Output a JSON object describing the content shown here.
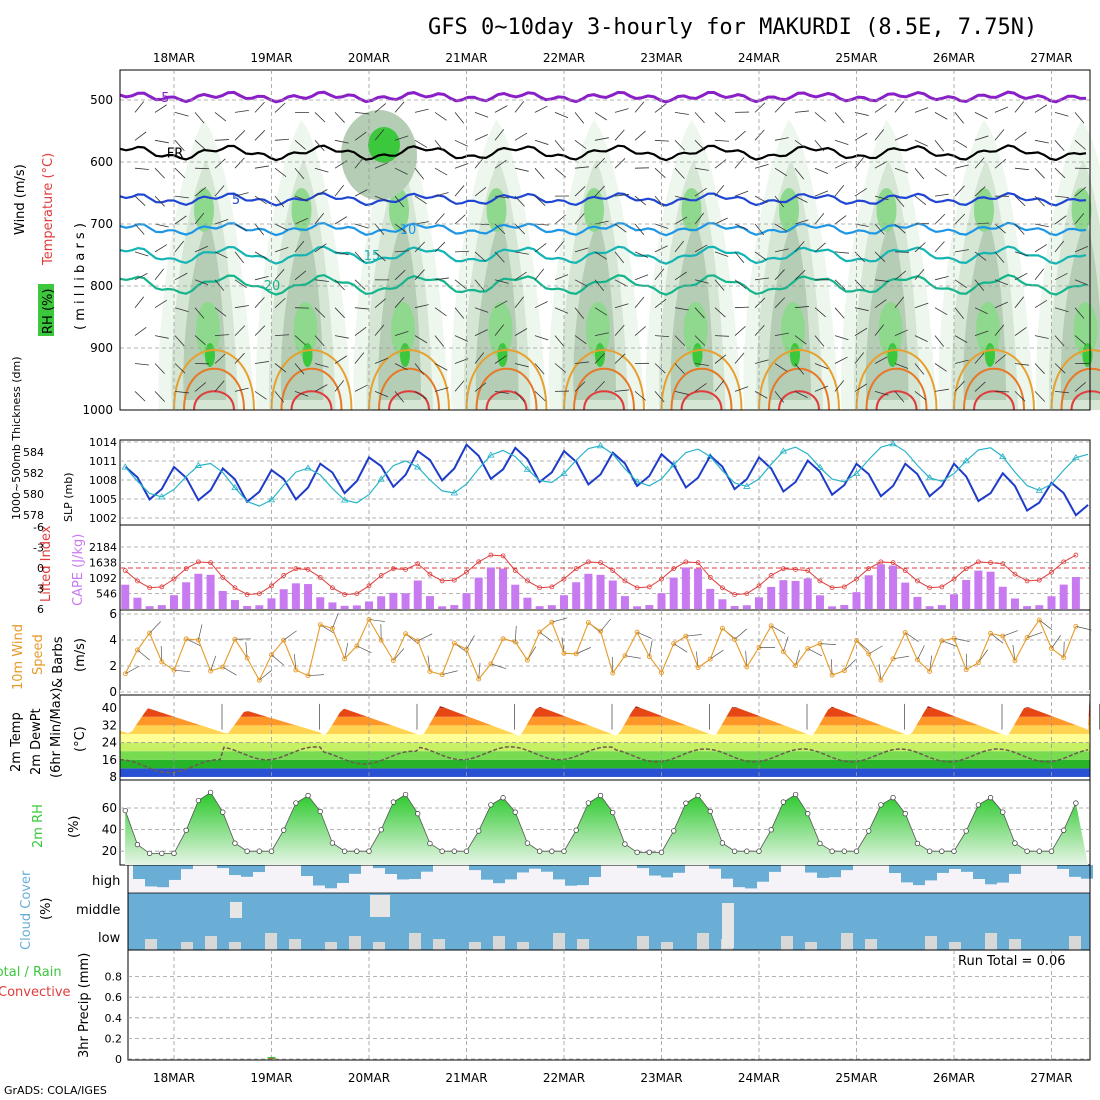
{
  "title": "GFS 0~10day 3-hourly for MAKURDI (8.5E, 7.75N)",
  "credit": "GrADS: COLA/IGES",
  "dates": [
    "18MAR",
    "19MAR",
    "20MAR",
    "21MAR",
    "22MAR",
    "23MAR",
    "24MAR",
    "25MAR",
    "26MAR",
    "27MAR"
  ],
  "colors": {
    "rh": "#3cc83c",
    "temp_minus5": "#8a1fc8",
    "temp_0": "#000000",
    "temp_5": "#1e46d2",
    "temp_10": "#1e96e6",
    "temp_15": "#14b4b4",
    "temp_20": "#14b48c",
    "slp": "#1e3cc8",
    "thickness": "#28b4c8",
    "cape": "#c87af0",
    "lifted_index": "#e03c3c",
    "wind10m": "#e69a28",
    "rh2m": "#3cc83c",
    "cloud": "#6aaed6",
    "precip_total": "#3cc83c",
    "precip_conv": "#e03c3c"
  },
  "panels": {
    "upper": {
      "labels": {
        "rh": "RH (%)",
        "temp": "Temperature (°C)",
        "wind": "Wind (m/s)",
        "axis": "( m i l l i b a r s )"
      },
      "pressure_ticks": [
        "500",
        "600",
        "700",
        "800",
        "900",
        "1000"
      ],
      "isotherm_labels": [
        "-5",
        "FR",
        "5",
        "10",
        "15",
        "20"
      ]
    },
    "slp_thick": {
      "labels": {
        "thick": "1000~500mb Thickness (dm)",
        "slp": "SLP (mb)"
      },
      "thick_ticks": [
        "584",
        "582",
        "580",
        "578"
      ],
      "slp_ticks": [
        "1014",
        "1011",
        "1008",
        "1005",
        "1002"
      ]
    },
    "cape_li": {
      "labels": {
        "li": "Lifted Index",
        "cape": "CAPE (J/kg)"
      },
      "li_ticks": [
        "-6",
        "-3",
        "0",
        "3",
        "6"
      ],
      "cape_ticks": [
        "2184",
        "1638",
        "1092",
        "546"
      ]
    },
    "wind10": {
      "labels": {
        "a": "10m Wind",
        "b": "Speed",
        "c": "& Barbs",
        "unit": "(m/s)"
      },
      "ticks": [
        "6",
        "4",
        "2",
        "0"
      ]
    },
    "temp2m": {
      "labels": {
        "a": "2m Temp",
        "b": "2m DewPt",
        "c": "(6hr Min/Max)",
        "unit": "(°C)"
      },
      "ticks": [
        "40",
        "32",
        "24",
        "16",
        "8"
      ]
    },
    "rh2m": {
      "labels": {
        "a": "2m RH",
        "unit": "(%)"
      },
      "ticks": [
        "60",
        "40",
        "20"
      ]
    },
    "cloud": {
      "labels": {
        "a": "Cloud Cover",
        "unit": "(%)",
        "high": "high",
        "middle": "middle",
        "low": "low"
      }
    },
    "precip": {
      "labels": {
        "total": "Total / Rain",
        "conv": "Convective",
        "axis": "3hr Precip (mm)",
        "run_total": "Run Total = 0.06"
      },
      "ticks": [
        "0.8",
        "0.6",
        "0.4",
        "0.2",
        "0"
      ]
    }
  },
  "chart_data": [
    {
      "type": "line",
      "title": "SLP (mb) and 1000~500mb Thickness (dm)",
      "x": [
        "18MAR",
        "19MAR",
        "20MAR",
        "21MAR",
        "22MAR",
        "23MAR",
        "24MAR",
        "25MAR",
        "26MAR",
        "27MAR"
      ],
      "series": [
        {
          "name": "SLP (mb)",
          "values": [
            1007.5,
            1007.0,
            1009.0,
            1011.0,
            1010.0,
            1009.5,
            1009.0,
            1008.0,
            1008.0,
            1005.0
          ]
        },
        {
          "name": "1000~500mb Thickness (dm)",
          "values": [
            581.5,
            580.5,
            581.0,
            582.0,
            583.0,
            582.5,
            582.5,
            583.0,
            583.0,
            582.0
          ]
        }
      ],
      "ylim_slp": [
        1002,
        1014
      ],
      "ylim_thickness": [
        578,
        584
      ]
    },
    {
      "type": "bar",
      "title": "CAPE (J/kg) and Lifted Index",
      "x": [
        "18MAR",
        "19MAR",
        "20MAR",
        "21MAR",
        "22MAR",
        "23MAR",
        "24MAR",
        "25MAR",
        "26MAR",
        "27MAR"
      ],
      "series": [
        {
          "name": "CAPE (J/kg)",
          "values": [
            1000,
            700,
            400,
            1200,
            1000,
            1200,
            800,
            1300,
            1100,
            900
          ]
        },
        {
          "name": "Lifted Index",
          "values": [
            -1,
            0,
            0,
            -2,
            -1,
            -1,
            0,
            -1,
            -1,
            -2
          ]
        }
      ],
      "ylim_cape": [
        0,
        2184
      ],
      "ylim_li": [
        6,
        -6
      ]
    },
    {
      "type": "line",
      "title": "10m Wind Speed (m/s)",
      "x": [
        "18MAR",
        "19MAR",
        "20MAR",
        "21MAR",
        "22MAR",
        "23MAR",
        "24MAR",
        "25MAR",
        "26MAR",
        "27MAR"
      ],
      "series": [
        {
          "name": "10m Wind Speed",
          "values": [
            3.0,
            2.5,
            4.0,
            2.5,
            4.0,
            3.0,
            3.5,
            2.5,
            3.0,
            4.0
          ]
        }
      ],
      "ylim": [
        0,
        6
      ]
    },
    {
      "type": "area",
      "title": "2m Temp / 2m DewPt (°C)",
      "x": [
        "18MAR",
        "19MAR",
        "20MAR",
        "21MAR",
        "22MAR",
        "23MAR",
        "24MAR",
        "25MAR",
        "26MAR",
        "27MAR"
      ],
      "series": [
        {
          "name": "2m Temp max",
          "values": [
            40,
            39,
            40,
            41,
            41,
            41,
            41,
            41,
            41,
            41
          ]
        },
        {
          "name": "2m Temp min",
          "values": [
            28,
            28,
            27,
            27,
            27,
            27,
            27,
            27,
            27,
            27
          ]
        },
        {
          "name": "2m DewPt",
          "values": [
            13,
            19,
            17,
            19,
            19,
            18,
            18,
            18,
            18,
            18
          ]
        }
      ],
      "ylim": [
        8,
        44
      ]
    },
    {
      "type": "area",
      "title": "2m RH (%)",
      "x": [
        "18MAR",
        "19MAR",
        "20MAR",
        "21MAR",
        "22MAR",
        "23MAR",
        "24MAR",
        "25MAR",
        "26MAR",
        "27MAR"
      ],
      "series": [
        {
          "name": "2m RH max",
          "values": [
            75,
            72,
            73,
            70,
            72,
            72,
            73,
            70,
            70,
            72
          ]
        },
        {
          "name": "2m RH min",
          "values": [
            18,
            20,
            20,
            20,
            20,
            19,
            20,
            20,
            20,
            20
          ]
        }
      ],
      "ylim": [
        10,
        80
      ]
    },
    {
      "type": "bar",
      "title": "3hr Precip (mm)",
      "x": [
        "18MAR",
        "19MAR",
        "20MAR",
        "21MAR",
        "22MAR",
        "23MAR",
        "24MAR",
        "25MAR",
        "26MAR",
        "27MAR"
      ],
      "series": [
        {
          "name": "3hr Precip",
          "values": [
            0,
            0.02,
            0,
            0,
            0,
            0,
            0,
            0,
            0,
            0
          ]
        }
      ],
      "ylim": [
        0,
        1.0
      ]
    }
  ]
}
